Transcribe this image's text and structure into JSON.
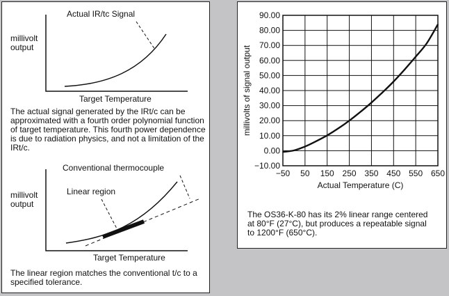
{
  "left_panel": {
    "diagram1": {
      "signal_label": "Actual IR/tc Signal",
      "ylabel_line1": "millivolt",
      "ylabel_line2": "output",
      "xlabel": "Target Temperature"
    },
    "paragraph1": "The actual signal generated by the IRt/c can be approximated with a fourth order polynomial function of target temperature. This fourth power dependence is due to radiation physics, and not a limitation of the IRt/c.",
    "diagram2": {
      "thermocouple_label": "Conventional thermocouple",
      "linear_label": "Linear region",
      "ylabel_line1": "millivolt",
      "ylabel_line2": "output",
      "xlabel": "Target Temperature"
    },
    "paragraph2": "The linear region matches the conventional t/c to a specified tolerance."
  },
  "chart_data": {
    "type": "line",
    "title": "",
    "xlabel": "Actual Temperature (C)",
    "ylabel": "millivolts of signal output",
    "xlim": [
      -50,
      650
    ],
    "ylim": [
      -10,
      90
    ],
    "x_ticks": [
      -50,
      50,
      150,
      250,
      350,
      450,
      550,
      650
    ],
    "x_tick_labels": [
      "−50",
      "50",
      "150",
      "250",
      "350",
      "450",
      "550",
      "650"
    ],
    "y_ticks": [
      -10,
      0,
      10,
      20,
      30,
      40,
      50,
      60,
      70,
      80,
      90
    ],
    "y_tick_labels": [
      "−10.00",
      "0.00",
      "10.00",
      "20.00",
      "30.00",
      "40.00",
      "50.00",
      "60.00",
      "70.00",
      "80.00",
      "90.00"
    ],
    "grid": true,
    "series": [
      {
        "x": [
          -50,
          0,
          50,
          100,
          150,
          200,
          250,
          300,
          350,
          400,
          450,
          500,
          550,
          600,
          650
        ],
        "y": [
          -0.8,
          0.2,
          2.8,
          6.3,
          10.2,
          14.8,
          20.0,
          25.8,
          32.0,
          38.8,
          46.0,
          54.0,
          62.5,
          71.5,
          84.0
        ]
      }
    ],
    "caption": "The OS36-K-80 has its 2% linear range centered at 80°F (27°C), but produces a repeatable signal to 1200°F (650°C)."
  }
}
